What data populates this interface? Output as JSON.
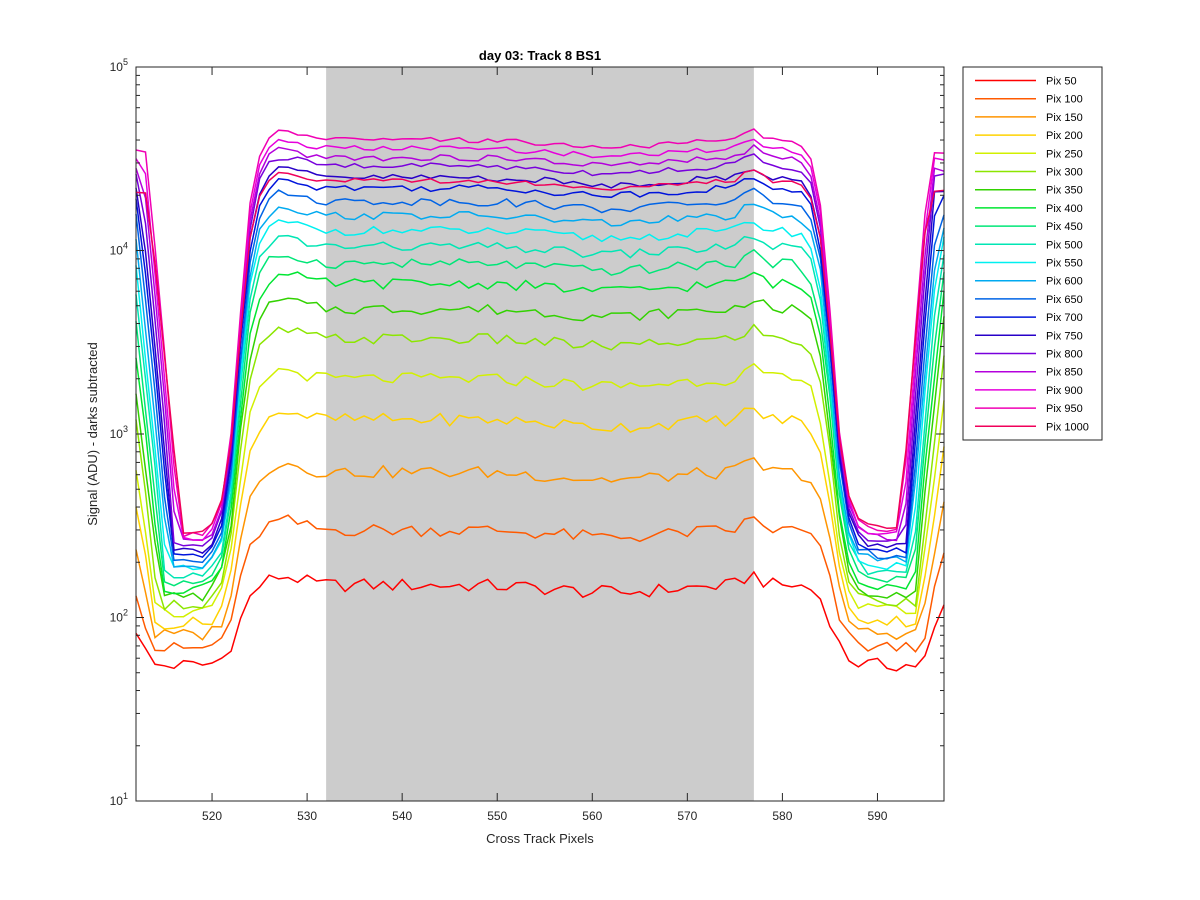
{
  "chart_data": {
    "type": "line",
    "title": "day 03: Track 8  BS1",
    "xlabel": "Cross Track Pixels",
    "ylabel": "Signal (ADU) - darks subtracted",
    "y_scale": "log",
    "xlim": [
      512,
      597
    ],
    "ylim": [
      10,
      100000
    ],
    "x_ticks": [
      520,
      530,
      540,
      550,
      560,
      570,
      580,
      590
    ],
    "y_ticks": [
      {
        "value": 10,
        "base": "10",
        "exp": "1"
      },
      {
        "value": 100,
        "base": "10",
        "exp": "2"
      },
      {
        "value": 1000,
        "base": "10",
        "exp": "3"
      },
      {
        "value": 10000,
        "base": "10",
        "exp": "4"
      },
      {
        "value": 100000,
        "base": "10",
        "exp": "5"
      }
    ],
    "shaded_region": {
      "x_start": 532,
      "x_end": 577,
      "color": "#cccccc"
    },
    "grid": false,
    "legend_position": "outside-right",
    "series": [
      {
        "name": "Pix 50",
        "color": "#ff0000",
        "plateau": 150
      },
      {
        "name": "Pix 100",
        "color": "#ff5a00",
        "plateau": 300
      },
      {
        "name": "Pix 150",
        "color": "#ff9500",
        "plateau": 620
      },
      {
        "name": "Pix 200",
        "color": "#ffd200",
        "plateau": 1200
      },
      {
        "name": "Pix 250",
        "color": "#d2f000",
        "plateau": 2000
      },
      {
        "name": "Pix 300",
        "color": "#8ce600",
        "plateau": 3300
      },
      {
        "name": "Pix 350",
        "color": "#32d200",
        "plateau": 4800
      },
      {
        "name": "Pix 400",
        "color": "#00e632",
        "plateau": 6600
      },
      {
        "name": "Pix 450",
        "color": "#00e678",
        "plateau": 8500
      },
      {
        "name": "Pix 500",
        "color": "#00e6b4",
        "plateau": 10500
      },
      {
        "name": "Pix 550",
        "color": "#00f0f0",
        "plateau": 12800
      },
      {
        "name": "Pix 600",
        "color": "#00aaf0",
        "plateau": 15500
      },
      {
        "name": "Pix 650",
        "color": "#0064e6",
        "plateau": 18500
      },
      {
        "name": "Pix 700",
        "color": "#0014dc",
        "plateau": 22000
      },
      {
        "name": "Pix 750",
        "color": "#2800c8",
        "plateau": 25000
      },
      {
        "name": "Pix 800",
        "color": "#7800dc",
        "plateau": 29000
      },
      {
        "name": "Pix 850",
        "color": "#b400dc",
        "plateau": 32000
      },
      {
        "name": "Pix 900",
        "color": "#e600dc",
        "plateau": 36000
      },
      {
        "name": "Pix 950",
        "color": "#f000b4",
        "plateau": 40000
      },
      {
        "name": "Pix 1000",
        "color": "#f0005a",
        "plateau": 24000
      }
    ]
  }
}
